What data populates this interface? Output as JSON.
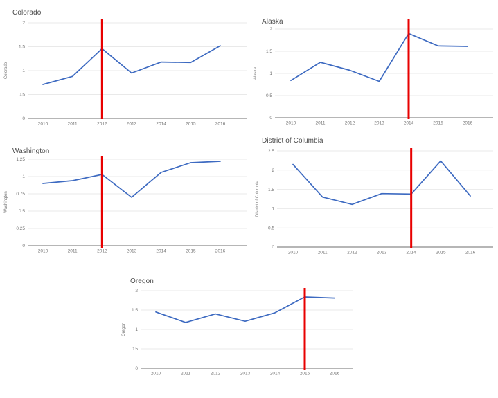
{
  "colors": {
    "background": "#ffffff",
    "series": "#3d6ac1",
    "vline": "#e80000",
    "gridline": "#e9e9e9",
    "axis_line": "#9e9e9e",
    "tick_label": "#757575",
    "title": "#4c4c4c"
  },
  "chart_data": [
    {
      "type": "line",
      "title": "Colorado",
      "ylabel": "Colorado",
      "x": [
        "2010",
        "2011",
        "2012",
        "2013",
        "2014",
        "2015",
        "2016"
      ],
      "values": [
        0.71,
        0.88,
        1.46,
        0.95,
        1.18,
        1.17,
        1.52
      ],
      "ylim": [
        0,
        2
      ],
      "yticks": [
        "0",
        "0.5",
        "1",
        "1.5",
        "2"
      ],
      "grid": true,
      "legend": "none",
      "vline_year": "2012"
    },
    {
      "type": "line",
      "title": "Alaska",
      "ylabel": "Alaska",
      "x": [
        "2010",
        "2011",
        "2012",
        "2013",
        "2014",
        "2015",
        "2016"
      ],
      "values": [
        0.84,
        1.25,
        1.07,
        0.82,
        1.9,
        1.62,
        1.61
      ],
      "ylim": [
        0,
        2
      ],
      "yticks": [
        "0",
        "0.5",
        "1",
        "1.5",
        "2"
      ],
      "grid": true,
      "legend": "none",
      "vline_year": "2014"
    },
    {
      "type": "line",
      "title": "Washington",
      "ylabel": "Washington",
      "x": [
        "2010",
        "2011",
        "2012",
        "2013",
        "2014",
        "2015",
        "2016"
      ],
      "values": [
        0.9,
        0.94,
        1.03,
        0.7,
        1.06,
        1.2,
        1.22
      ],
      "ylim": [
        0,
        1.25
      ],
      "yticks": [
        "0",
        "0.25",
        "0.5",
        "0.75",
        "1",
        "1.25"
      ],
      "grid": true,
      "legend": "none",
      "vline_year": "2012"
    },
    {
      "type": "line",
      "title": "District of Columbia",
      "ylabel": "District of Columbia",
      "x": [
        "2010",
        "2011",
        "2012",
        "2013",
        "2014",
        "2015",
        "2016"
      ],
      "values": [
        2.15,
        1.3,
        1.11,
        1.39,
        1.38,
        2.24,
        1.33
      ],
      "ylim": [
        0,
        2.5
      ],
      "yticks": [
        "0",
        "0.5",
        "1",
        "1.5",
        "2",
        "2.5"
      ],
      "grid": true,
      "legend": "none",
      "vline_year": "2014"
    },
    {
      "type": "line",
      "title": "Oregon",
      "ylabel": "Oregon",
      "x": [
        "2010",
        "2011",
        "2012",
        "2013",
        "2014",
        "2015",
        "2016"
      ],
      "values": [
        1.45,
        1.18,
        1.4,
        1.21,
        1.43,
        1.84,
        1.81
      ],
      "ylim": [
        0,
        2
      ],
      "yticks": [
        "0",
        "0.5",
        "1",
        "1.5",
        "2"
      ],
      "grid": true,
      "legend": "none",
      "vline_year": "2015"
    }
  ]
}
